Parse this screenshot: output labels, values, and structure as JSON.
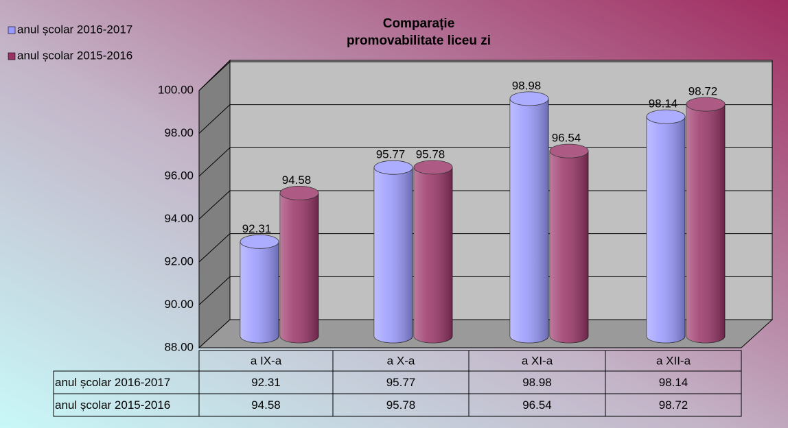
{
  "chart_data": {
    "type": "bar",
    "title": [
      "Comparație",
      "promovabilitate liceu zi"
    ],
    "categories": [
      "a IX-a",
      "a X-a",
      "a XI-a",
      "a XII-a"
    ],
    "series": [
      {
        "name": "anul școlar 2016-2017",
        "color": "#9999ff",
        "values": [
          92.31,
          95.77,
          98.98,
          98.14
        ]
      },
      {
        "name": "anul școlar 2015-2016",
        "color": "#993366",
        "values": [
          94.58,
          95.78,
          96.54,
          98.72
        ]
      }
    ],
    "ylim": [
      88,
      100
    ],
    "yticks": [
      {
        "value": 88,
        "label": "88.00"
      },
      {
        "value": 90,
        "label": "90.00"
      },
      {
        "value": 92,
        "label": "92.00"
      },
      {
        "value": 94,
        "label": "94.00"
      },
      {
        "value": 96,
        "label": "96.00"
      },
      {
        "value": 98,
        "label": "98.00"
      },
      {
        "value": 100,
        "label": "100.00"
      }
    ],
    "grid": true,
    "legend": "top-left",
    "data_table": true
  }
}
